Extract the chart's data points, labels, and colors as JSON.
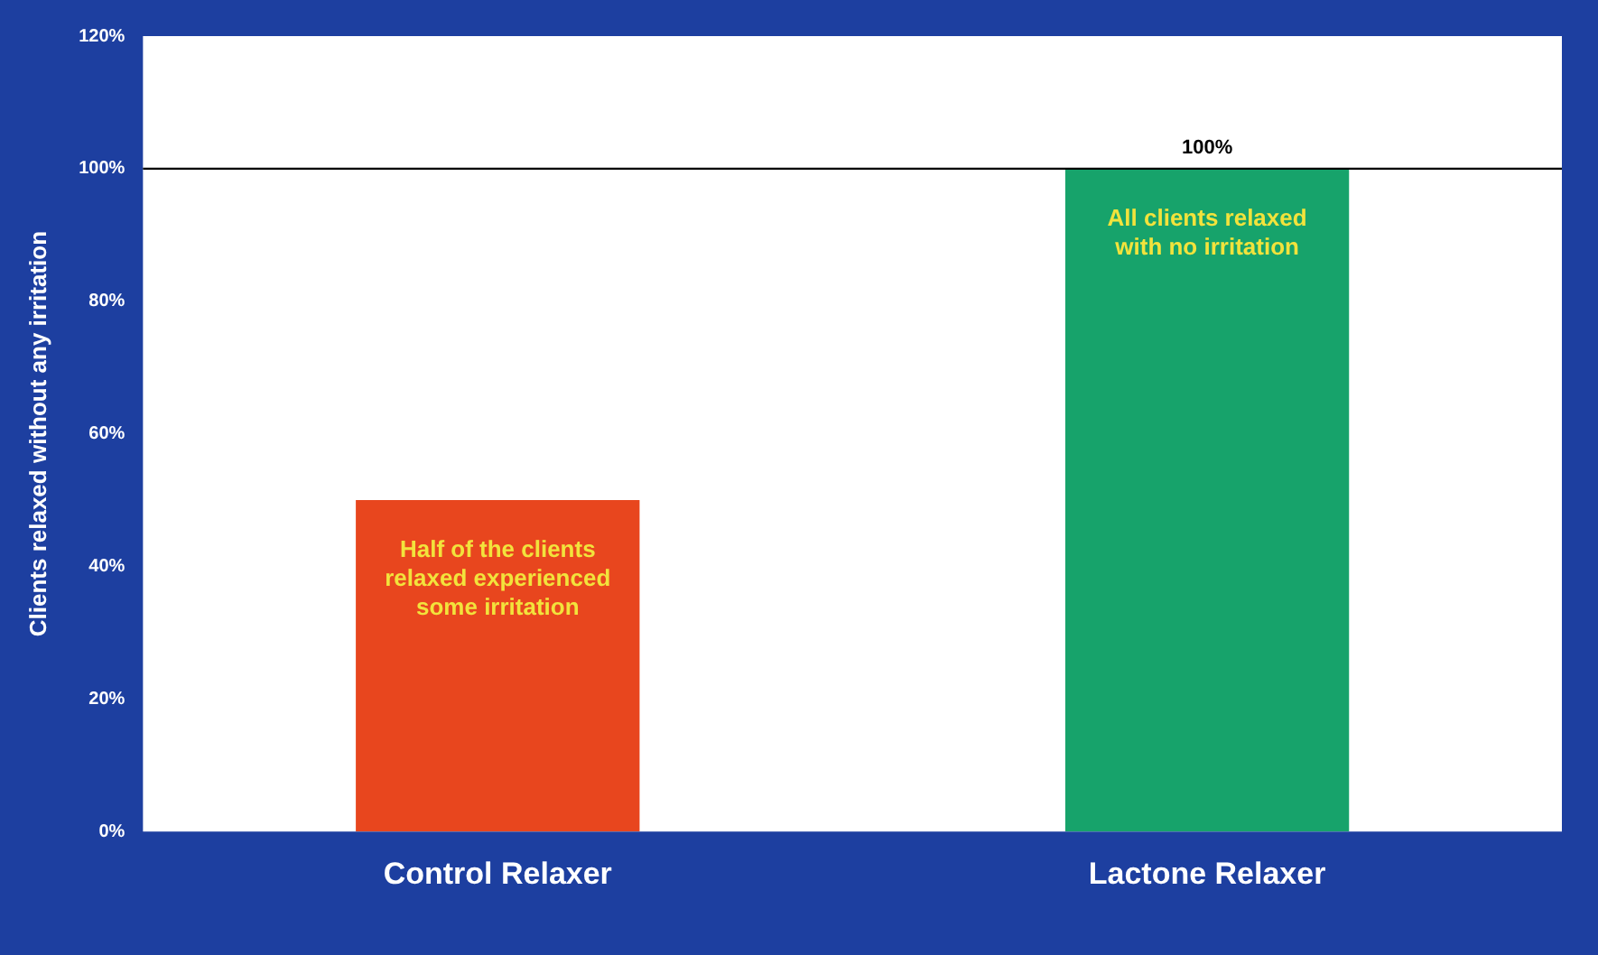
{
  "chart_data": {
    "type": "bar",
    "ylabel": "Clients relaxed without any irritation",
    "categories": [
      "Control Relaxer",
      "Lactone Relaxer"
    ],
    "values": [
      50,
      100
    ],
    "colors": [
      "#e8461e",
      "#17a36b"
    ],
    "value_labels": [
      null,
      "100%"
    ],
    "ylim": [
      0,
      120
    ],
    "yticks": [
      {
        "value": 0,
        "label": "0%"
      },
      {
        "value": 20,
        "label": "20%"
      },
      {
        "value": 40,
        "label": "40%"
      },
      {
        "value": 60,
        "label": "60%"
      },
      {
        "value": 80,
        "label": "80%"
      },
      {
        "value": 100,
        "label": "100%"
      },
      {
        "value": 120,
        "label": "120%"
      }
    ],
    "grid": false,
    "legend": false,
    "ref_lines": [
      {
        "axis": "y",
        "value": 100,
        "color": "#000000"
      }
    ],
    "annotations": [
      "Half of the clients relaxed experienced some irritation",
      "All clients relaxed with no irritation"
    ]
  }
}
